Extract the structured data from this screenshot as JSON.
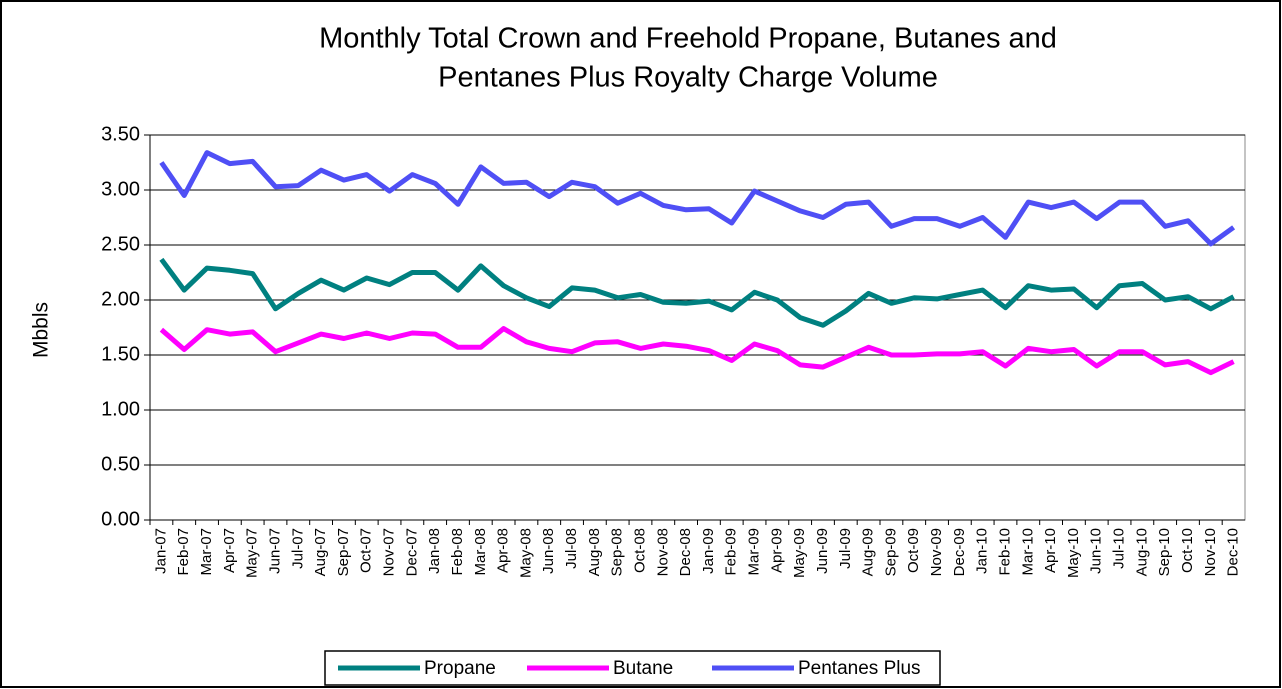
{
  "chart_data": {
    "type": "line",
    "title": [
      "Monthly Total Crown and Freehold Propane, Butanes and",
      "Pentanes Plus Royalty Charge Volume"
    ],
    "y_label": "Mbbls",
    "categories": [
      "Jan-07",
      "Feb-07",
      "Mar-07",
      "Apr-07",
      "May-07",
      "Jun-07",
      "Jul-07",
      "Aug-07",
      "Sep-07",
      "Oct-07",
      "Nov-07",
      "Dec-07",
      "Jan-08",
      "Feb-08",
      "Mar-08",
      "Apr-08",
      "May-08",
      "Jun-08",
      "Jul-08",
      "Aug-08",
      "Sep-08",
      "Oct-08",
      "Nov-08",
      "Dec-08",
      "Jan-09",
      "Feb-09",
      "Mar-09",
      "Apr-09",
      "May-09",
      "Jun-09",
      "Jul-09",
      "Aug-09",
      "Sep-09",
      "Oct-09",
      "Nov-09",
      "Dec-09",
      "Jan-10",
      "Feb-10",
      "Mar-10",
      "Apr-10",
      "May-10",
      "Jun-10",
      "Jul-10",
      "Aug-10",
      "Sep-10",
      "Oct-10",
      "Nov-10",
      "Dec-10"
    ],
    "series": [
      {
        "name": "Propane",
        "color": "#008080",
        "values": [
          2.37,
          2.09,
          2.29,
          2.27,
          2.24,
          1.92,
          2.06,
          2.18,
          2.09,
          2.2,
          2.14,
          2.25,
          2.25,
          2.09,
          2.31,
          2.13,
          2.02,
          1.94,
          2.11,
          2.09,
          2.02,
          2.05,
          1.98,
          1.97,
          1.99,
          1.91,
          2.07,
          2.0,
          1.84,
          1.77,
          1.9,
          2.06,
          1.97,
          2.02,
          2.01,
          2.05,
          2.09,
          1.93,
          2.13,
          2.09,
          2.1,
          1.93,
          2.13,
          2.15,
          2.0,
          2.03,
          1.92,
          2.03
        ]
      },
      {
        "name": "Butane",
        "color": "#ff00ff",
        "values": [
          1.73,
          1.55,
          1.73,
          1.69,
          1.71,
          1.53,
          1.61,
          1.69,
          1.65,
          1.7,
          1.65,
          1.7,
          1.69,
          1.57,
          1.57,
          1.74,
          1.62,
          1.56,
          1.53,
          1.61,
          1.62,
          1.56,
          1.6,
          1.58,
          1.54,
          1.45,
          1.6,
          1.54,
          1.41,
          1.39,
          1.48,
          1.57,
          1.5,
          1.5,
          1.51,
          1.51,
          1.53,
          1.4,
          1.56,
          1.53,
          1.55,
          1.4,
          1.53,
          1.53,
          1.41,
          1.44,
          1.34,
          1.44
        ]
      },
      {
        "name": "Pentanes Plus",
        "color": "#4f4ff5",
        "values": [
          3.25,
          2.95,
          3.34,
          3.24,
          3.26,
          3.03,
          3.04,
          3.18,
          3.09,
          3.14,
          2.99,
          3.14,
          3.06,
          2.87,
          3.21,
          3.06,
          3.07,
          2.94,
          3.07,
          3.03,
          2.88,
          2.97,
          2.86,
          2.82,
          2.83,
          2.7,
          2.99,
          2.9,
          2.81,
          2.75,
          2.87,
          2.89,
          2.67,
          2.74,
          2.74,
          2.67,
          2.75,
          2.57,
          2.89,
          2.84,
          2.89,
          2.74,
          2.89,
          2.89,
          2.67,
          2.72,
          2.51,
          2.66
        ]
      }
    ],
    "ylim": [
      0,
      3.5
    ],
    "yticks": [
      {
        "value": 0,
        "label": "0.00"
      },
      {
        "value": 0.5,
        "label": "0.50"
      },
      {
        "value": 1,
        "label": "1.00"
      },
      {
        "value": 1.5,
        "label": "1.50"
      },
      {
        "value": 2,
        "label": "2.00"
      },
      {
        "value": 2.5,
        "label": "2.50"
      },
      {
        "value": 3,
        "label": "3.00"
      },
      {
        "value": 3.5,
        "label": "3.50"
      }
    ],
    "grid": true,
    "legend": "bottom"
  }
}
